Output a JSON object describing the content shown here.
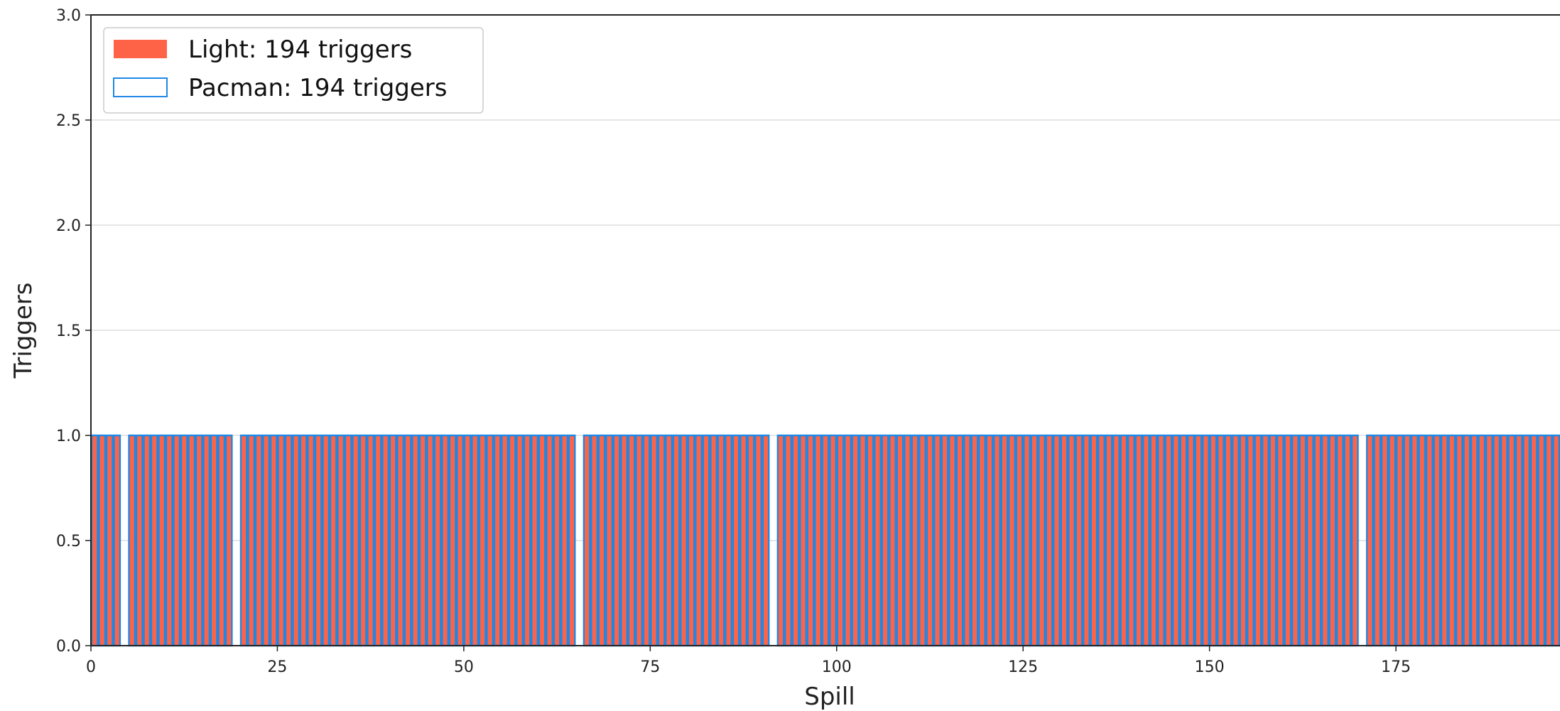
{
  "chart_data": {
    "type": "bar",
    "xlabel": "Spill",
    "ylabel": "Triggers",
    "ylim": [
      0,
      3.0
    ],
    "xlim": [
      0,
      197
    ],
    "xticks": [
      0,
      25,
      50,
      75,
      100,
      125,
      150,
      175
    ],
    "yticks": [
      "0.0",
      "0.5",
      "1.0",
      "1.5",
      "2.0",
      "2.5",
      "3.0"
    ],
    "grid": "y",
    "legend_position": "top-left",
    "bar_value": 1,
    "missing_spills": [
      4,
      19,
      65,
      91,
      170
    ],
    "series": [
      {
        "name": "Light: 194 triggers",
        "style": "filled",
        "color": "#ff6347"
      },
      {
        "name": "Pacman: 194 triggers",
        "style": "outline",
        "color": "#1e88e5"
      }
    ]
  }
}
